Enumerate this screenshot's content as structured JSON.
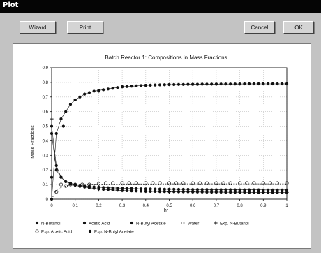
{
  "window": {
    "title": "Plot"
  },
  "toolbar": {
    "wizard_label": "Wizard",
    "print_label": "Print",
    "cancel_label": "Cancel",
    "ok_label": "OK"
  },
  "colors": {
    "titlebar": "#050505",
    "window_bg": "#c3c3c3",
    "plot_bg": "#ffffff",
    "ink": "#111111",
    "grid": "#bdbdbd"
  },
  "chart_data": {
    "type": "scatter",
    "title": "Batch Reactor 1: Compositions in Mass Fractions",
    "xlabel": "hr",
    "ylabel": "Mass Fractions",
    "xlim": [
      0,
      1
    ],
    "ylim": [
      0,
      0.9
    ],
    "x_ticks": [
      "0",
      "0.1",
      "0.2",
      "0.3",
      "0.4",
      "0.5",
      "0.6",
      "0.7",
      "0.8",
      "0.9",
      "1"
    ],
    "y_ticks": [
      "0",
      "0.1",
      "0.2",
      "0.3",
      "0.4",
      "0.5",
      "0.6",
      "0.7",
      "0.8",
      "0.9"
    ],
    "grid": true,
    "legend": {
      "placement": "bottom"
    },
    "series": [
      {
        "name": "N-Butanol",
        "marker": "dot",
        "x": [
          0,
          0.02,
          0.04,
          0.06,
          0.08,
          0.1,
          0.12,
          0.14,
          0.16,
          0.18,
          0.2,
          0.22,
          0.24,
          0.26,
          0.28,
          0.3,
          0.32,
          0.34,
          0.36,
          0.38,
          0.4,
          0.42,
          0.44,
          0.46,
          0.48,
          0.5,
          0.52,
          0.54,
          0.56,
          0.58,
          0.6,
          0.62,
          0.64,
          0.66,
          0.68,
          0.7,
          0.72,
          0.74,
          0.76,
          0.78,
          0.8,
          0.82,
          0.84,
          0.86,
          0.88,
          0.9,
          0.92,
          0.94,
          0.96,
          0.98,
          1
        ],
        "y": [
          0.5,
          0.23,
          0.15,
          0.12,
          0.105,
          0.095,
          0.088,
          0.083,
          0.078,
          0.074,
          0.07,
          0.067,
          0.065,
          0.063,
          0.061,
          0.059,
          0.058,
          0.057,
          0.056,
          0.055,
          0.054,
          0.053,
          0.053,
          0.052,
          0.052,
          0.051,
          0.051,
          0.05,
          0.05,
          0.05,
          0.049,
          0.049,
          0.049,
          0.048,
          0.048,
          0.048,
          0.048,
          0.047,
          0.047,
          0.047,
          0.047,
          0.047,
          0.046,
          0.046,
          0.046,
          0.046,
          0.046,
          0.046,
          0.046,
          0.045,
          0.045
        ]
      },
      {
        "name": "Acetic Acid",
        "marker": "dot",
        "x": [
          0,
          0.02,
          0.04,
          0.06,
          0.08,
          0.1,
          0.12,
          0.14,
          0.16,
          0.18,
          0.2,
          0.22,
          0.24,
          0.26,
          0.28,
          0.3,
          0.32,
          0.34,
          0.36,
          0.38,
          0.4,
          0.42,
          0.44,
          0.46,
          0.48,
          0.5,
          0.52,
          0.54,
          0.56,
          0.58,
          0.6,
          0.62,
          0.64,
          0.66,
          0.68,
          0.7,
          0.72,
          0.74,
          0.76,
          0.78,
          0.8,
          0.82,
          0.84,
          0.86,
          0.88,
          0.9,
          0.92,
          0.94,
          0.96,
          0.98,
          1
        ],
        "y": [
          0.45,
          0.2,
          0.15,
          0.12,
          0.11,
          0.1,
          0.095,
          0.09,
          0.087,
          0.084,
          0.082,
          0.08,
          0.078,
          0.077,
          0.076,
          0.075,
          0.074,
          0.073,
          0.072,
          0.071,
          0.07,
          0.07,
          0.069,
          0.069,
          0.068,
          0.068,
          0.068,
          0.067,
          0.067,
          0.067,
          0.066,
          0.066,
          0.066,
          0.066,
          0.065,
          0.065,
          0.065,
          0.065,
          0.065,
          0.064,
          0.064,
          0.064,
          0.064,
          0.064,
          0.064,
          0.063,
          0.063,
          0.063,
          0.063,
          0.063,
          0.063
        ]
      },
      {
        "name": "N-Butyl Acetate",
        "marker": "dot",
        "x": [
          0,
          0.02,
          0.04,
          0.06,
          0.08,
          0.1,
          0.12,
          0.14,
          0.16,
          0.18,
          0.2,
          0.22,
          0.24,
          0.26,
          0.28,
          0.3,
          0.32,
          0.34,
          0.36,
          0.38,
          0.4,
          0.42,
          0.44,
          0.46,
          0.48,
          0.5,
          0.52,
          0.54,
          0.56,
          0.58,
          0.6,
          0.62,
          0.64,
          0.66,
          0.68,
          0.7,
          0.72,
          0.74,
          0.76,
          0.78,
          0.8,
          0.82,
          0.84,
          0.86,
          0.88,
          0.9,
          0.92,
          0.94,
          0.96,
          0.98,
          1
        ],
        "y": [
          0,
          0.45,
          0.55,
          0.6,
          0.65,
          0.68,
          0.7,
          0.72,
          0.73,
          0.74,
          0.745,
          0.75,
          0.755,
          0.76,
          0.765,
          0.77,
          0.772,
          0.774,
          0.776,
          0.778,
          0.78,
          0.781,
          0.782,
          0.783,
          0.784,
          0.785,
          0.785,
          0.786,
          0.786,
          0.787,
          0.787,
          0.787,
          0.788,
          0.788,
          0.788,
          0.788,
          0.789,
          0.789,
          0.789,
          0.789,
          0.789,
          0.79,
          0.79,
          0.79,
          0.79,
          0.79,
          0.79,
          0.79,
          0.79,
          0.79,
          0.79
        ]
      },
      {
        "name": "Water",
        "marker": "none",
        "x": [
          0,
          0.02,
          0.04,
          0.06,
          0.08,
          0.1,
          0.12,
          0.14,
          0.16,
          0.18,
          0.2,
          0.25,
          0.3,
          0.35,
          0.4,
          0.45,
          0.5,
          0.55,
          0.6,
          0.65,
          0.7,
          0.75,
          0.8,
          0.85,
          0.9,
          0.95,
          1
        ],
        "y": [
          0,
          0.06,
          0.08,
          0.09,
          0.095,
          0.098,
          0.1,
          0.101,
          0.102,
          0.102,
          0.103,
          0.103,
          0.104,
          0.104,
          0.104,
          0.104,
          0.105,
          0.105,
          0.105,
          0.105,
          0.105,
          0.105,
          0.105,
          0.105,
          0.105,
          0.105,
          0.105
        ]
      },
      {
        "name": "Exp. N-Butanol",
        "marker": "plus",
        "x": [
          0,
          0.1,
          0.2,
          0.3,
          0.4,
          0.5,
          0.6,
          0.7,
          0.8,
          0.9,
          1
        ],
        "y": [
          0.55,
          0.1,
          0.07,
          0.06,
          0.055,
          0.05,
          0.05,
          0.048,
          0.047,
          0.046,
          0.046
        ]
      },
      {
        "name": "Exp. Acetic Acid",
        "marker": "open-circle",
        "x": [
          0.02,
          0.04,
          0.06,
          0.08,
          0.1,
          0.13,
          0.16,
          0.2,
          0.23,
          0.26,
          0.3,
          0.33,
          0.36,
          0.4,
          0.43,
          0.46,
          0.5,
          0.53,
          0.56,
          0.6,
          0.63,
          0.66,
          0.7,
          0.73,
          0.76,
          0.8,
          0.83,
          0.86,
          0.9,
          0.93,
          0.96,
          1
        ],
        "y": [
          0.05,
          0.1,
          0.09,
          0.1,
          0.1,
          0.1,
          0.1,
          0.105,
          0.11,
          0.11,
          0.11,
          0.11,
          0.11,
          0.11,
          0.11,
          0.11,
          0.11,
          0.11,
          0.11,
          0.11,
          0.11,
          0.11,
          0.11,
          0.11,
          0.11,
          0.11,
          0.11,
          0.11,
          0.11,
          0.11,
          0.11,
          0.11
        ]
      },
      {
        "name": "Exp. N-Butyl Acetate",
        "marker": "dot",
        "x": [
          0,
          0.05,
          0.1,
          0.2,
          0.3,
          0.4,
          0.5,
          0.6,
          0.7,
          0.8,
          0.9,
          1
        ],
        "y": [
          0.15,
          0.5,
          0.68,
          0.74,
          0.77,
          0.78,
          0.785,
          0.787,
          0.788,
          0.789,
          0.79,
          0.79
        ]
      }
    ]
  }
}
